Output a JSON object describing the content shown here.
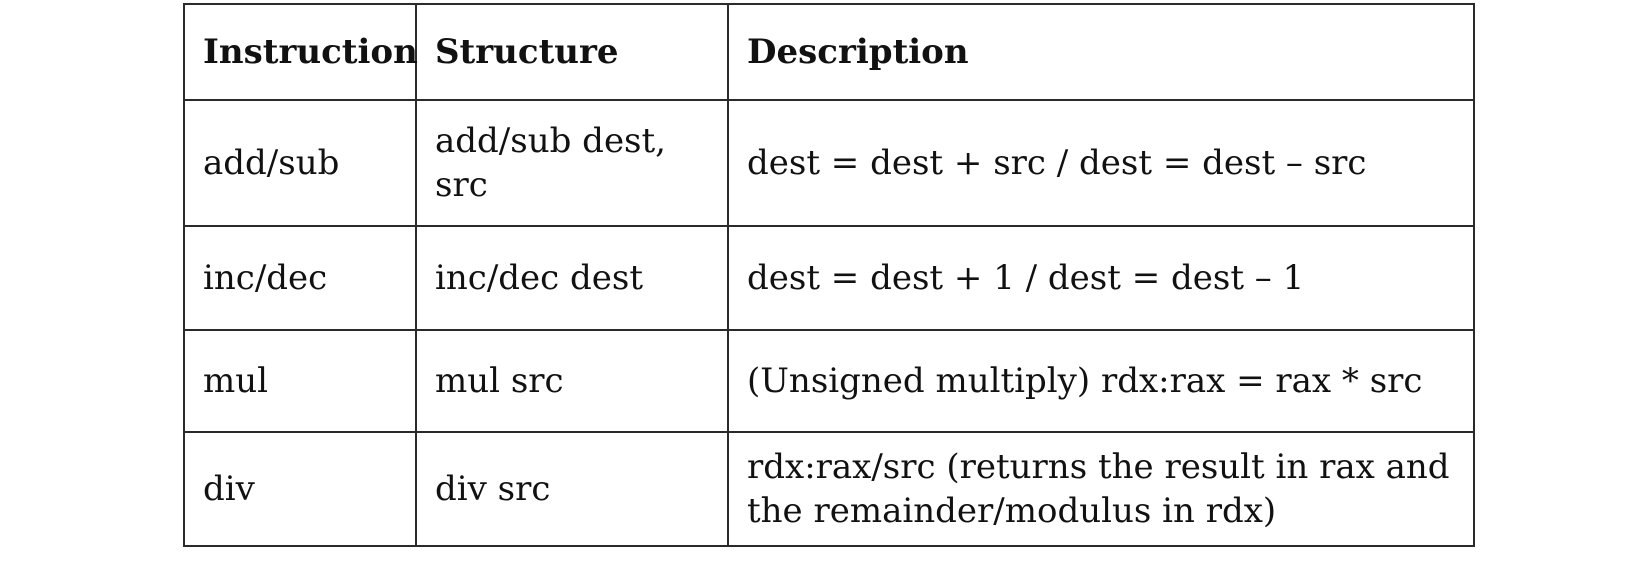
{
  "table": {
    "headers": [
      "Instruction",
      "Structure",
      "Description"
    ],
    "rows": [
      {
        "instruction": "add/sub",
        "structure": "add/sub dest, src",
        "description": "dest = dest + src / dest = dest – src"
      },
      {
        "instruction": "inc/dec",
        "structure": "inc/dec dest",
        "description": "dest = dest + 1 / dest = dest – 1"
      },
      {
        "instruction": "mul",
        "structure": "mul src",
        "description": "(Unsigned multiply) rdx:rax = rax * src"
      },
      {
        "instruction": "div",
        "structure": "div src",
        "description": "rdx:rax/src (returns the result in rax and the remainder/modulus in rdx)"
      }
    ]
  }
}
